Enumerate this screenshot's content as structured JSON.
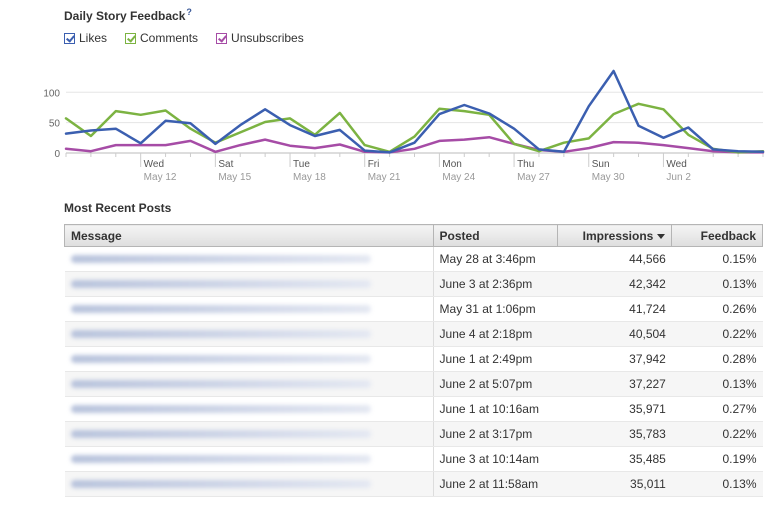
{
  "header": {
    "title": "Daily Story Feedback",
    "help": "?"
  },
  "legend": [
    {
      "label": "Likes",
      "color": "#3b5fb0"
    },
    {
      "label": "Comments",
      "color": "#7cb342"
    },
    {
      "label": "Unsubscribes",
      "color": "#a64ca6"
    }
  ],
  "chart_data": {
    "type": "line",
    "y_ticks": [
      "0",
      "50",
      "100"
    ],
    "ylim": [
      0,
      140
    ],
    "x_tick_days": [
      "Wed",
      "Sat",
      "Tue",
      "Fri",
      "Mon",
      "Thu",
      "Sun",
      "Wed"
    ],
    "x_tick_dates": [
      "May 12",
      "May 15",
      "May 18",
      "May 21",
      "May 24",
      "May 27",
      "May 30",
      "Jun 2"
    ],
    "x": [
      "May 9",
      "May 10",
      "May 11",
      "May 12",
      "May 13",
      "May 14",
      "May 15",
      "May 16",
      "May 17",
      "May 18",
      "May 19",
      "May 20",
      "May 21",
      "May 22",
      "May 23",
      "May 24",
      "May 25",
      "May 26",
      "May 27",
      "May 28",
      "May 29",
      "May 30",
      "May 31",
      "Jun 1",
      "Jun 2",
      "Jun 3",
      "Jun 4",
      "Jun 5",
      "Jun 6"
    ],
    "series": [
      {
        "name": "Likes",
        "color": "#3b5fb0",
        "values": [
          32,
          37,
          40,
          16,
          53,
          49,
          15,
          46,
          72,
          46,
          28,
          38,
          4,
          1,
          17,
          64,
          79,
          65,
          40,
          6,
          2,
          77,
          135,
          45,
          25,
          42,
          6,
          3,
          2
        ]
      },
      {
        "name": "Comments",
        "color": "#7cb342",
        "values": [
          57,
          28,
          69,
          63,
          70,
          40,
          17,
          34,
          51,
          57,
          30,
          66,
          13,
          2,
          27,
          73,
          69,
          63,
          15,
          3,
          17,
          24,
          64,
          81,
          72,
          30,
          7,
          1,
          3
        ]
      },
      {
        "name": "Unsubscribes",
        "color": "#a64ca6",
        "values": [
          7,
          3,
          13,
          13,
          13,
          20,
          2,
          13,
          22,
          12,
          8,
          14,
          2,
          1,
          7,
          20,
          22,
          26,
          15,
          5,
          2,
          8,
          18,
          17,
          13,
          8,
          3,
          1,
          1
        ]
      }
    ]
  },
  "recent": {
    "title": "Most Recent Posts",
    "columns": {
      "message": "Message",
      "posted": "Posted",
      "impressions": "Impressions",
      "feedback": "Feedback"
    },
    "rows": [
      {
        "posted": "May 28 at 3:46pm",
        "impressions": "44,566",
        "feedback": "0.15%"
      },
      {
        "posted": "June 3 at 2:36pm",
        "impressions": "42,342",
        "feedback": "0.13%"
      },
      {
        "posted": "May 31 at 1:06pm",
        "impressions": "41,724",
        "feedback": "0.26%"
      },
      {
        "posted": "June 4 at 2:18pm",
        "impressions": "40,504",
        "feedback": "0.22%"
      },
      {
        "posted": "June 1 at 2:49pm",
        "impressions": "37,942",
        "feedback": "0.28%"
      },
      {
        "posted": "June 2 at 5:07pm",
        "impressions": "37,227",
        "feedback": "0.13%"
      },
      {
        "posted": "June 1 at 10:16am",
        "impressions": "35,971",
        "feedback": "0.27%"
      },
      {
        "posted": "June 2 at 3:17pm",
        "impressions": "35,783",
        "feedback": "0.22%"
      },
      {
        "posted": "June 3 at 10:14am",
        "impressions": "35,485",
        "feedback": "0.19%"
      },
      {
        "posted": "June 2 at 11:58am",
        "impressions": "35,011",
        "feedback": "0.13%"
      }
    ]
  }
}
